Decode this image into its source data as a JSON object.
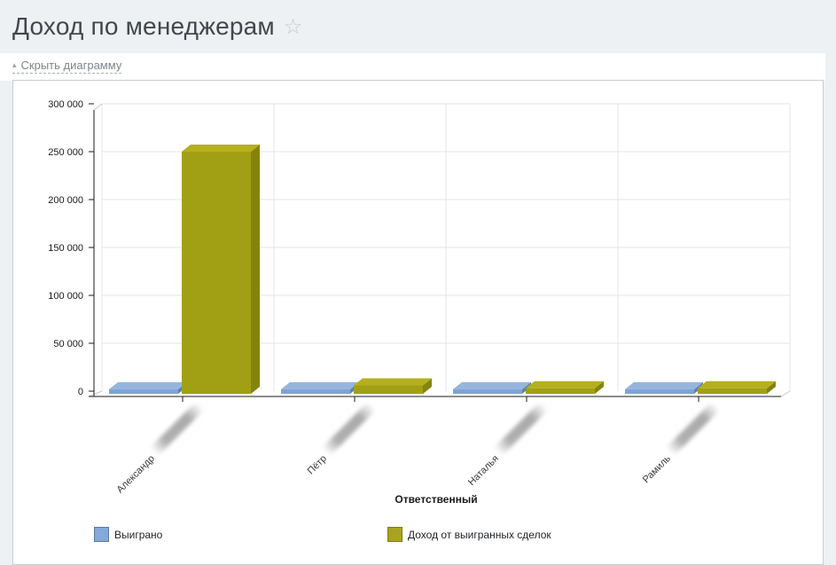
{
  "page": {
    "title": "Доход по менеджерам",
    "toggle_chart_label": "Скрыть диаграмму",
    "icons": {
      "favorite_star": "☆",
      "collapse_arrow": "▴"
    },
    "colors": {
      "page_bg": "#edf1f4",
      "panel_bg": "#ffffff",
      "card_border": "#c8cdd3",
      "grid": "#e4e4e4",
      "axis": "#1a1a1a",
      "depth_line": "#c9c9c9",
      "tick_text": "#1a1a1a",
      "category_text": "#3a3a3a"
    }
  },
  "chart_data": {
    "type": "bar",
    "variant": "3d-column",
    "title": "",
    "xlabel": "Ответственный",
    "ylabel": "",
    "categories": [
      "Александр",
      "Пётр",
      "Наталья",
      "Рамиль"
    ],
    "category_suffix_blurred": true,
    "ylim": [
      0,
      300000
    ],
    "ytick_step": 50000,
    "ytick_labels": [
      "0",
      "50 000",
      "100 000",
      "150 000",
      "200 000",
      "250 000",
      "300 000"
    ],
    "grid": true,
    "legend_position": "bottom",
    "series": [
      {
        "name": "Выиграно",
        "values": [
          2000,
          2000,
          2000,
          2000
        ],
        "colors": {
          "front": "#7fa3d2",
          "top": "#96b5de",
          "side": "#5e83ad",
          "legend": "#84a8d7",
          "legend_border": "#5a7ba6"
        }
      },
      {
        "name": "Доход от выигранных сделок",
        "values": [
          250000,
          6000,
          3000,
          3000
        ],
        "colors": {
          "front": "#a1a015",
          "top": "#b4b01f",
          "side": "#84840c",
          "legend": "#a8a41f",
          "legend_border": "#7e7c0e"
        }
      }
    ]
  }
}
